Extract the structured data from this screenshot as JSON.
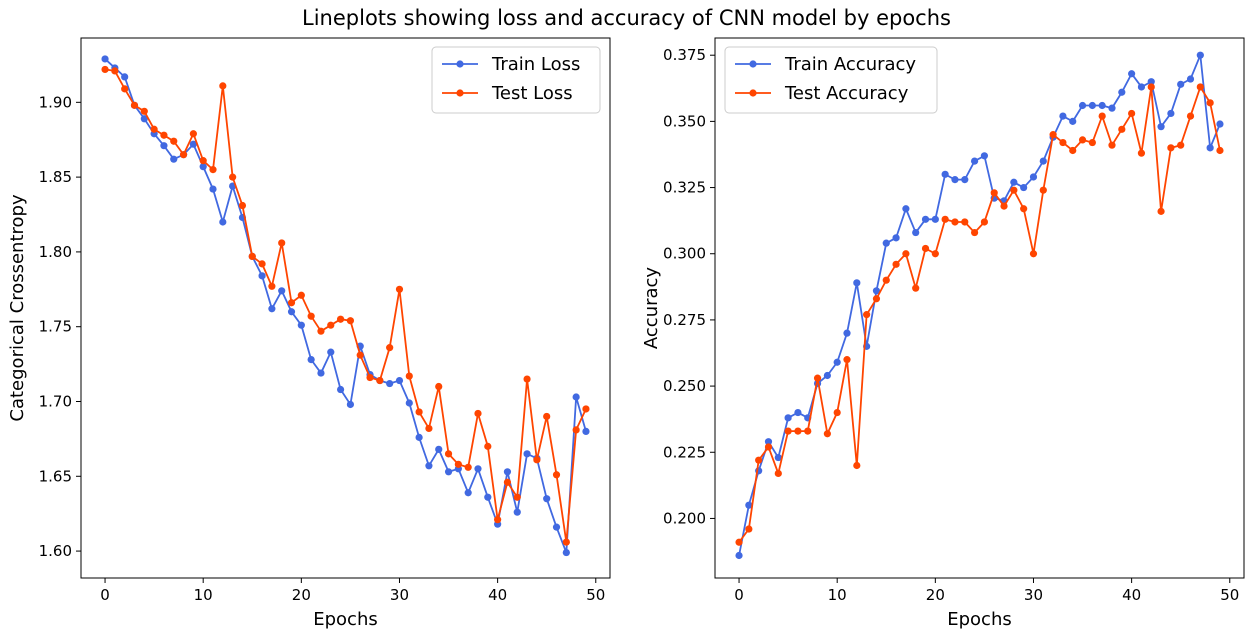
{
  "suptitle": "Lineplots showing loss and accuracy of CNN model by epochs",
  "chart_data": [
    {
      "type": "line",
      "xlabel": "Epochs",
      "ylabel": "Categorical Crossentropy",
      "xlim": [
        -2.45,
        51.45
      ],
      "ylim": [
        1.582,
        1.943
      ],
      "xticks": [
        0,
        10,
        20,
        30,
        40,
        50
      ],
      "yticks": [
        1.6,
        1.65,
        1.7,
        1.75,
        1.8,
        1.85,
        1.9
      ],
      "legend_position": "top-right",
      "series": [
        {
          "name": "Train Loss",
          "color": "#4169e1",
          "values": [
            1.929,
            1.923,
            1.917,
            1.898,
            1.889,
            1.879,
            1.871,
            1.862,
            1.865,
            1.872,
            1.857,
            1.842,
            1.82,
            1.844,
            1.823,
            1.797,
            1.784,
            1.762,
            1.774,
            1.76,
            1.751,
            1.728,
            1.719,
            1.733,
            1.708,
            1.698,
            1.737,
            1.718,
            1.714,
            1.712,
            1.714,
            1.699,
            1.676,
            1.657,
            1.668,
            1.653,
            1.655,
            1.639,
            1.655,
            1.636,
            1.618,
            1.653,
            1.626,
            1.665,
            1.662,
            1.635,
            1.616,
            1.599,
            1.703,
            1.68
          ]
        },
        {
          "name": "Test Loss",
          "color": "#ff4500",
          "values": [
            1.922,
            1.921,
            1.909,
            1.898,
            1.894,
            1.882,
            1.878,
            1.874,
            1.865,
            1.879,
            1.861,
            1.855,
            1.911,
            1.85,
            1.831,
            1.797,
            1.792,
            1.777,
            1.806,
            1.766,
            1.771,
            1.757,
            1.747,
            1.751,
            1.755,
            1.754,
            1.731,
            1.716,
            1.714,
            1.736,
            1.775,
            1.717,
            1.693,
            1.682,
            1.71,
            1.665,
            1.658,
            1.656,
            1.692,
            1.67,
            1.621,
            1.646,
            1.636,
            1.715,
            1.661,
            1.69,
            1.651,
            1.606,
            1.681,
            1.695
          ]
        }
      ]
    },
    {
      "type": "line",
      "xlabel": "Epochs",
      "ylabel": "Accuracy",
      "xlim": [
        -2.45,
        51.45
      ],
      "ylim": [
        0.1775,
        0.3815
      ],
      "xticks": [
        0,
        10,
        20,
        30,
        40,
        50
      ],
      "yticks": [
        0.2,
        0.225,
        0.25,
        0.275,
        0.3,
        0.325,
        0.35,
        0.375
      ],
      "legend_position": "top-left",
      "series": [
        {
          "name": "Train Accuracy",
          "color": "#4169e1",
          "values": [
            0.186,
            0.205,
            0.218,
            0.229,
            0.223,
            0.238,
            0.24,
            0.238,
            0.251,
            0.254,
            0.259,
            0.27,
            0.289,
            0.265,
            0.286,
            0.304,
            0.306,
            0.317,
            0.308,
            0.313,
            0.313,
            0.33,
            0.328,
            0.328,
            0.335,
            0.337,
            0.321,
            0.32,
            0.327,
            0.325,
            0.329,
            0.335,
            0.344,
            0.352,
            0.35,
            0.356,
            0.356,
            0.356,
            0.355,
            0.361,
            0.368,
            0.363,
            0.365,
            0.348,
            0.353,
            0.364,
            0.366,
            0.375,
            0.34,
            0.349
          ]
        },
        {
          "name": "Test Accuracy",
          "color": "#ff4500",
          "values": [
            0.191,
            0.196,
            0.222,
            0.227,
            0.217,
            0.233,
            0.233,
            0.233,
            0.253,
            0.232,
            0.24,
            0.26,
            0.22,
            0.277,
            0.283,
            0.29,
            0.296,
            0.3,
            0.287,
            0.302,
            0.3,
            0.313,
            0.312,
            0.312,
            0.308,
            0.312,
            0.323,
            0.318,
            0.324,
            0.317,
            0.3,
            0.324,
            0.345,
            0.342,
            0.339,
            0.343,
            0.342,
            0.352,
            0.341,
            0.347,
            0.353,
            0.338,
            0.363,
            0.316,
            0.34,
            0.341,
            0.352,
            0.363,
            0.357,
            0.339
          ]
        }
      ]
    }
  ]
}
